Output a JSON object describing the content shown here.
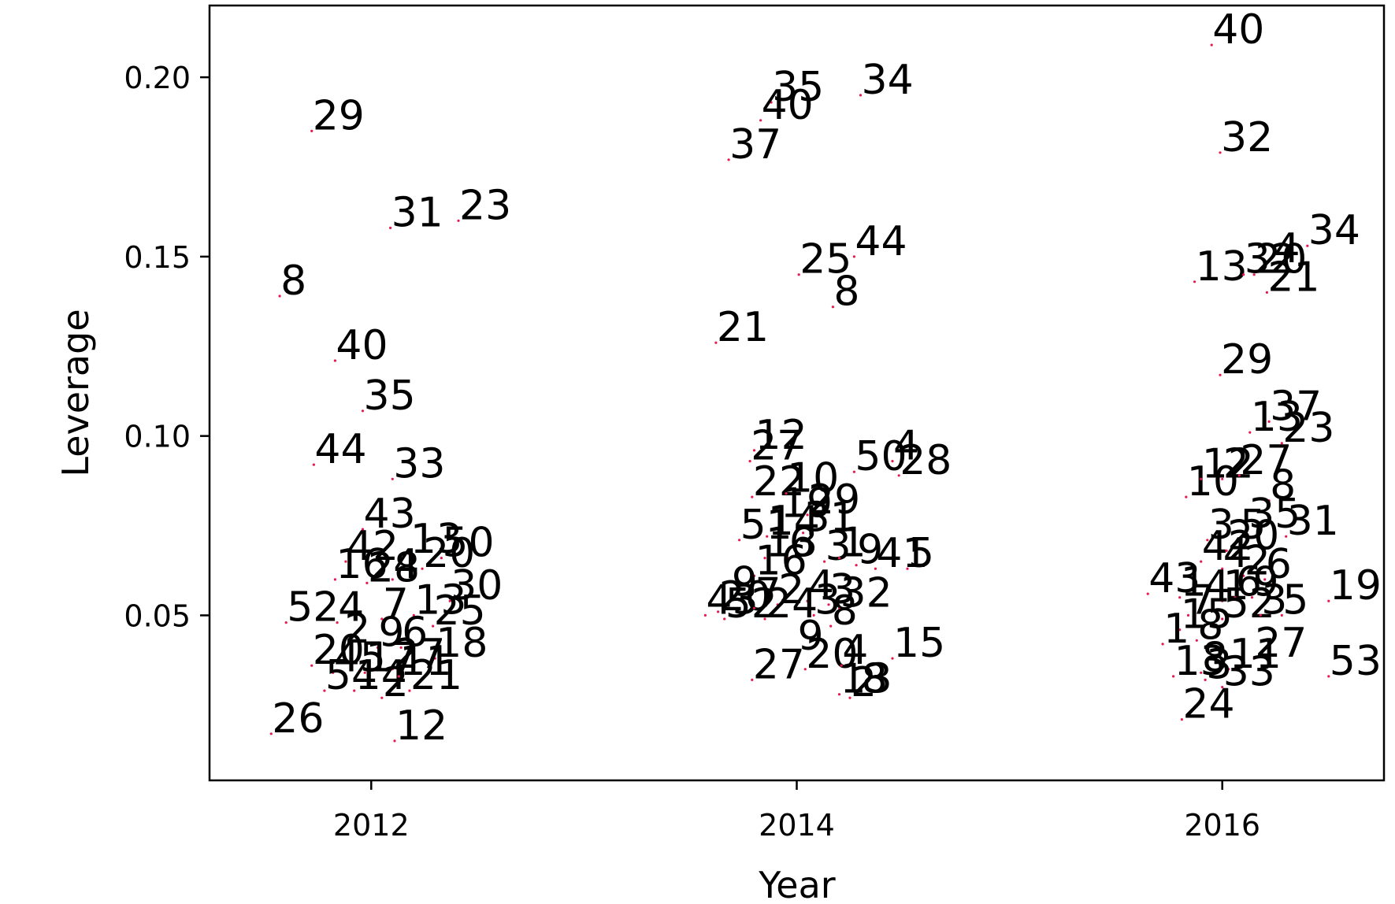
{
  "chart_data": {
    "type": "scatter",
    "title": "",
    "xlabel": "Year",
    "ylabel": "Leverage",
    "xlim": [
      2011.24,
      2016.76
    ],
    "ylim": [
      0.004,
      0.22
    ],
    "xticks": [
      2012,
      2014,
      2016
    ],
    "xtick_labels": [
      "2012",
      "2014",
      "2016"
    ],
    "yticks": [
      0.05,
      0.1,
      0.15,
      0.2
    ],
    "ytick_labels": [
      "0.05",
      "0.10",
      "0.15",
      "0.20"
    ],
    "grid": false,
    "legend": "none",
    "marker_color": "#e8194f",
    "label_color": "#000000",
    "series": [
      {
        "points": [
          {
            "x": 2011.72,
            "y": 0.185,
            "label": "29"
          },
          {
            "x": 2012.09,
            "y": 0.158,
            "label": "31"
          },
          {
            "x": 2012.41,
            "y": 0.16,
            "label": "23"
          },
          {
            "x": 2011.57,
            "y": 0.139,
            "label": "8"
          },
          {
            "x": 2011.83,
            "y": 0.121,
            "label": "40"
          },
          {
            "x": 2011.96,
            "y": 0.107,
            "label": "35"
          },
          {
            "x": 2011.73,
            "y": 0.092,
            "label": "44"
          },
          {
            "x": 2012.1,
            "y": 0.088,
            "label": "33"
          },
          {
            "x": 2011.96,
            "y": 0.074,
            "label": "43"
          },
          {
            "x": 2011.88,
            "y": 0.065,
            "label": "42"
          },
          {
            "x": 2012.18,
            "y": 0.067,
            "label": "13"
          },
          {
            "x": 2012.33,
            "y": 0.066,
            "label": "50"
          },
          {
            "x": 2012.24,
            "y": 0.063,
            "label": "20"
          },
          {
            "x": 2011.83,
            "y": 0.06,
            "label": "16"
          },
          {
            "x": 2011.98,
            "y": 0.059,
            "label": "28"
          },
          {
            "x": 2012.1,
            "y": 0.06,
            "label": "4"
          },
          {
            "x": 2012.37,
            "y": 0.054,
            "label": "30"
          },
          {
            "x": 2011.6,
            "y": 0.048,
            "label": "52"
          },
          {
            "x": 2011.84,
            "y": 0.048,
            "label": "4"
          },
          {
            "x": 2012.05,
            "y": 0.049,
            "label": "7"
          },
          {
            "x": 2012.2,
            "y": 0.05,
            "label": "13"
          },
          {
            "x": 2012.29,
            "y": 0.047,
            "label": "25"
          },
          {
            "x": 2011.87,
            "y": 0.042,
            "label": "2"
          },
          {
            "x": 2012.03,
            "y": 0.041,
            "label": "9"
          },
          {
            "x": 2012.14,
            "y": 0.041,
            "label": "6"
          },
          {
            "x": 2012.3,
            "y": 0.038,
            "label": "18"
          },
          {
            "x": 2011.72,
            "y": 0.036,
            "label": "20"
          },
          {
            "x": 2011.82,
            "y": 0.034,
            "label": "45"
          },
          {
            "x": 2011.97,
            "y": 0.034,
            "label": "17"
          },
          {
            "x": 2012.1,
            "y": 0.035,
            "label": "27"
          },
          {
            "x": 2011.78,
            "y": 0.029,
            "label": "54"
          },
          {
            "x": 2011.92,
            "y": 0.029,
            "label": "14"
          },
          {
            "x": 2012.05,
            "y": 0.027,
            "label": "2"
          },
          {
            "x": 2012.18,
            "y": 0.029,
            "label": "21"
          },
          {
            "x": 2012.13,
            "y": 0.033,
            "label": "11"
          },
          {
            "x": 2011.53,
            "y": 0.017,
            "label": "26"
          },
          {
            "x": 2012.11,
            "y": 0.015,
            "label": "12"
          },
          {
            "x": 2013.88,
            "y": 0.193,
            "label": "35"
          },
          {
            "x": 2014.3,
            "y": 0.195,
            "label": "34"
          },
          {
            "x": 2013.83,
            "y": 0.188,
            "label": "40"
          },
          {
            "x": 2013.68,
            "y": 0.177,
            "label": "37"
          },
          {
            "x": 2014.01,
            "y": 0.145,
            "label": "25"
          },
          {
            "x": 2014.27,
            "y": 0.15,
            "label": "44"
          },
          {
            "x": 2014.17,
            "y": 0.136,
            "label": "8"
          },
          {
            "x": 2013.62,
            "y": 0.126,
            "label": "21"
          },
          {
            "x": 2013.8,
            "y": 0.096,
            "label": "12"
          },
          {
            "x": 2013.78,
            "y": 0.093,
            "label": "27"
          },
          {
            "x": 2014.27,
            "y": 0.09,
            "label": "50"
          },
          {
            "x": 2014.45,
            "y": 0.093,
            "label": "4"
          },
          {
            "x": 2014.48,
            "y": 0.089,
            "label": "28"
          },
          {
            "x": 2013.79,
            "y": 0.083,
            "label": "22"
          },
          {
            "x": 2013.95,
            "y": 0.084,
            "label": "10"
          },
          {
            "x": 2013.92,
            "y": 0.077,
            "label": "19"
          },
          {
            "x": 2014.05,
            "y": 0.078,
            "label": "29"
          },
          {
            "x": 2013.73,
            "y": 0.071,
            "label": "51"
          },
          {
            "x": 2013.86,
            "y": 0.072,
            "label": "14"
          },
          {
            "x": 2014.03,
            "y": 0.073,
            "label": "31"
          },
          {
            "x": 2013.85,
            "y": 0.066,
            "label": "13"
          },
          {
            "x": 2013.96,
            "y": 0.066,
            "label": "6"
          },
          {
            "x": 2014.13,
            "y": 0.065,
            "label": "3"
          },
          {
            "x": 2014.2,
            "y": 0.066,
            "label": "1"
          },
          {
            "x": 2014.28,
            "y": 0.064,
            "label": "9"
          },
          {
            "x": 2014.37,
            "y": 0.063,
            "label": "41"
          },
          {
            "x": 2014.52,
            "y": 0.063,
            "label": "5"
          },
          {
            "x": 2013.8,
            "y": 0.061,
            "label": "16"
          },
          {
            "x": 2013.69,
            "y": 0.055,
            "label": "9"
          },
          {
            "x": 2013.57,
            "y": 0.05,
            "label": "43"
          },
          {
            "x": 2013.63,
            "y": 0.051,
            "label": "20"
          },
          {
            "x": 2013.8,
            "y": 0.052,
            "label": "7"
          },
          {
            "x": 2013.91,
            "y": 0.053,
            "label": "2"
          },
          {
            "x": 2014.05,
            "y": 0.054,
            "label": "4"
          },
          {
            "x": 2014.2,
            "y": 0.052,
            "label": "32"
          },
          {
            "x": 2014.15,
            "y": 0.053,
            "label": "3"
          },
          {
            "x": 2013.66,
            "y": 0.049,
            "label": "52"
          },
          {
            "x": 2013.85,
            "y": 0.049,
            "label": "24"
          },
          {
            "x": 2014.08,
            "y": 0.05,
            "label": "3"
          },
          {
            "x": 2014.16,
            "y": 0.047,
            "label": "8"
          },
          {
            "x": 2014.0,
            "y": 0.04,
            "label": "9"
          },
          {
            "x": 2014.04,
            "y": 0.035,
            "label": "20"
          },
          {
            "x": 2014.21,
            "y": 0.036,
            "label": "4"
          },
          {
            "x": 2013.79,
            "y": 0.032,
            "label": "27"
          },
          {
            "x": 2014.45,
            "y": 0.038,
            "label": "15"
          },
          {
            "x": 2014.2,
            "y": 0.028,
            "label": "13"
          },
          {
            "x": 2014.3,
            "y": 0.028,
            "label": "8"
          },
          {
            "x": 2014.25,
            "y": 0.027,
            "label": "2"
          },
          {
            "x": 2015.95,
            "y": 0.209,
            "label": "40"
          },
          {
            "x": 2015.99,
            "y": 0.179,
            "label": "32"
          },
          {
            "x": 2015.87,
            "y": 0.143,
            "label": "13"
          },
          {
            "x": 2016.1,
            "y": 0.145,
            "label": "32"
          },
          {
            "x": 2016.15,
            "y": 0.145,
            "label": "20"
          },
          {
            "x": 2016.24,
            "y": 0.148,
            "label": "4"
          },
          {
            "x": 2016.4,
            "y": 0.153,
            "label": "34"
          },
          {
            "x": 2016.21,
            "y": 0.14,
            "label": "21"
          },
          {
            "x": 2015.99,
            "y": 0.117,
            "label": "29"
          },
          {
            "x": 2016.13,
            "y": 0.101,
            "label": "13"
          },
          {
            "x": 2016.22,
            "y": 0.104,
            "label": "37"
          },
          {
            "x": 2016.28,
            "y": 0.098,
            "label": "23"
          },
          {
            "x": 2015.83,
            "y": 0.083,
            "label": "10"
          },
          {
            "x": 2015.9,
            "y": 0.088,
            "label": "12"
          },
          {
            "x": 2016.0,
            "y": 0.088,
            "label": "2"
          },
          {
            "x": 2016.08,
            "y": 0.089,
            "label": "27"
          },
          {
            "x": 2016.22,
            "y": 0.082,
            "label": "8"
          },
          {
            "x": 2016.12,
            "y": 0.074,
            "label": "35"
          },
          {
            "x": 2016.3,
            "y": 0.072,
            "label": "31"
          },
          {
            "x": 2015.93,
            "y": 0.071,
            "label": "3"
          },
          {
            "x": 2015.9,
            "y": 0.065,
            "label": "42"
          },
          {
            "x": 2016.02,
            "y": 0.068,
            "label": "20"
          },
          {
            "x": 2016.08,
            "y": 0.071,
            "label": "5"
          },
          {
            "x": 2016.0,
            "y": 0.063,
            "label": "4"
          },
          {
            "x": 2016.1,
            "y": 0.061,
            "label": "2"
          },
          {
            "x": 2016.2,
            "y": 0.06,
            "label": "6"
          },
          {
            "x": 2015.65,
            "y": 0.056,
            "label": "43"
          },
          {
            "x": 2015.8,
            "y": 0.055,
            "label": "1"
          },
          {
            "x": 2015.91,
            "y": 0.054,
            "label": "4"
          },
          {
            "x": 2016.0,
            "y": 0.054,
            "label": "1"
          },
          {
            "x": 2016.06,
            "y": 0.055,
            "label": "6"
          },
          {
            "x": 2016.14,
            "y": 0.055,
            "label": "9"
          },
          {
            "x": 2015.84,
            "y": 0.05,
            "label": "7"
          },
          {
            "x": 2016.0,
            "y": 0.049,
            "label": "52"
          },
          {
            "x": 2016.18,
            "y": 0.05,
            "label": "3"
          },
          {
            "x": 2016.28,
            "y": 0.05,
            "label": "5"
          },
          {
            "x": 2016.5,
            "y": 0.054,
            "label": "19"
          },
          {
            "x": 2015.8,
            "y": 0.046,
            "label": "15"
          },
          {
            "x": 2015.88,
            "y": 0.043,
            "label": "8"
          },
          {
            "x": 2015.72,
            "y": 0.042,
            "label": "1"
          },
          {
            "x": 2016.15,
            "y": 0.038,
            "label": "27"
          },
          {
            "x": 2015.77,
            "y": 0.033,
            "label": "13"
          },
          {
            "x": 2015.9,
            "y": 0.034,
            "label": "8"
          },
          {
            "x": 2016.03,
            "y": 0.035,
            "label": "11"
          },
          {
            "x": 2015.92,
            "y": 0.032,
            "label": "3"
          },
          {
            "x": 2016.0,
            "y": 0.03,
            "label": "33"
          },
          {
            "x": 2016.5,
            "y": 0.033,
            "label": "53"
          },
          {
            "x": 2015.81,
            "y": 0.021,
            "label": "24"
          }
        ]
      }
    ]
  }
}
